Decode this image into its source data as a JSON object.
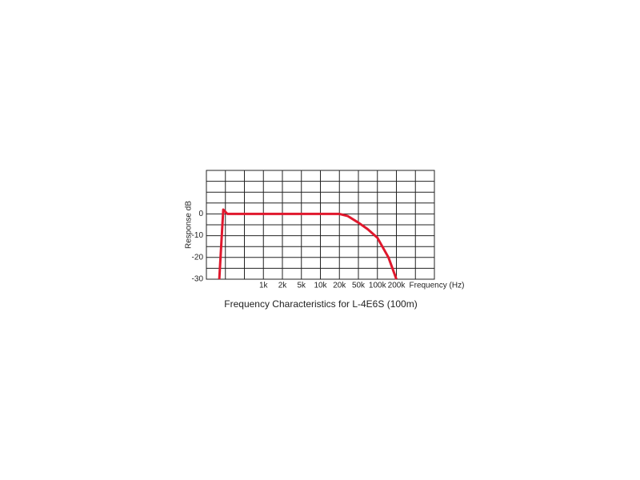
{
  "chart_data": {
    "type": "line",
    "title": "Frequency Characteristics for L-4E6S (100m)",
    "x_label": "Frequency (Hz)",
    "y_label": "Response dB",
    "x": [
      160,
      185,
      220,
      1000,
      10000,
      20000,
      30000,
      50000,
      70000,
      100000,
      150000,
      200000
    ],
    "series": [
      {
        "name": "L-4E6S (100m)",
        "color": "#e0182d",
        "values": [
          -30,
          2,
          0,
          0,
          0,
          0,
          -1,
          -4,
          -7,
          -11,
          -20,
          -30
        ]
      }
    ],
    "xlim": [
      100,
      1000000
    ],
    "xticks": [
      {
        "value": 1000,
        "label": "1k"
      },
      {
        "value": 2000,
        "label": "2k"
      },
      {
        "value": 5000,
        "label": "5k"
      },
      {
        "value": 10000,
        "label": "10k"
      },
      {
        "value": 20000,
        "label": "20k"
      },
      {
        "value": 50000,
        "label": "50k"
      },
      {
        "value": 100000,
        "label": "100k"
      },
      {
        "value": 200000,
        "label": "200k"
      }
    ],
    "xminor_ticks": [
      200,
      500,
      500000
    ],
    "ylim": [
      -30,
      20
    ],
    "yticks": [
      -30,
      -20,
      -10,
      0
    ],
    "yminor_ticks": [
      -25,
      -15,
      -5,
      5,
      10,
      15
    ],
    "grid": true
  }
}
